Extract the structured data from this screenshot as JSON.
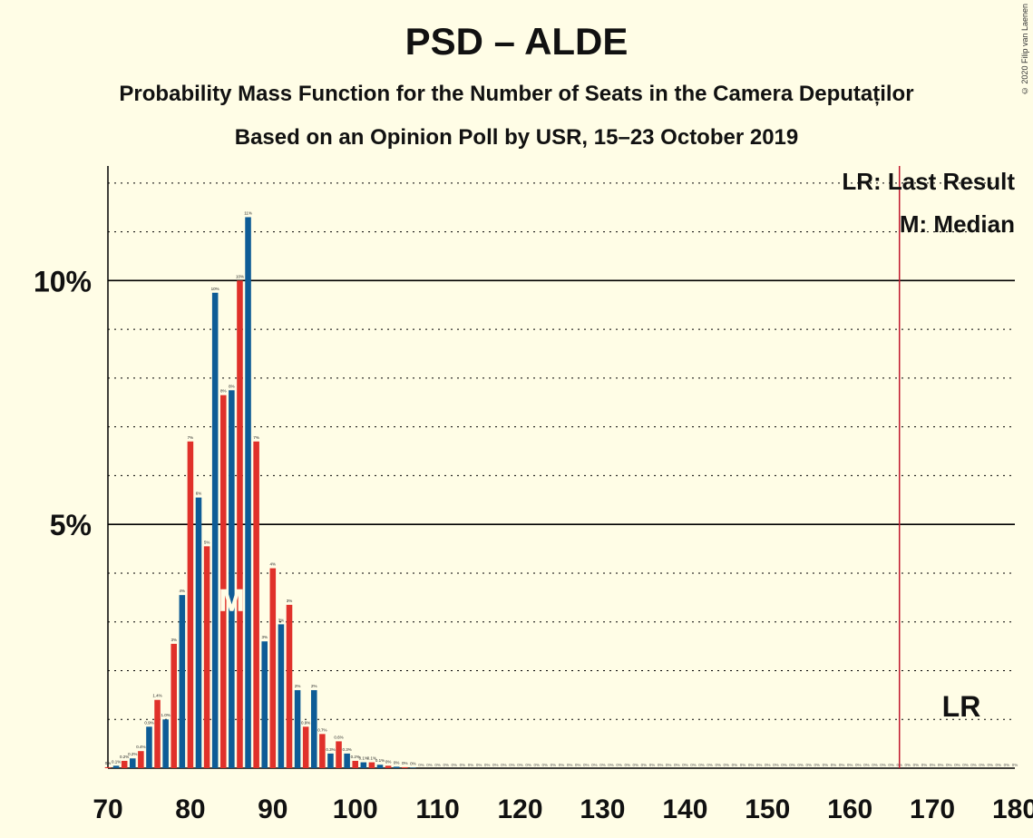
{
  "title": "PSD – ALDE",
  "subtitle": "Probability Mass Function for the Number of Seats in the Camera Deputaților",
  "subtitle2": "Based on an Opinion Poll by USR, 15–23 October 2019",
  "copyright": "© 2020 Filip van Laenen",
  "legend": {
    "last_result": "LR: Last Result",
    "median": "M: Median"
  },
  "colors": {
    "blue": "#0E5C96",
    "red": "#E0312A",
    "last_result_line": "#C0172D",
    "background": "#FFFDE6"
  },
  "chart_data": {
    "type": "bar",
    "title": "PSD – ALDE",
    "xlabel": "",
    "ylabel": "",
    "xlim": [
      70,
      180
    ],
    "ylim": [
      0,
      12.35
    ],
    "x_ticks": [
      "70",
      "80",
      "90",
      "100",
      "110",
      "120",
      "130",
      "140",
      "150",
      "160",
      "170",
      "180"
    ],
    "y_ticks": [
      {
        "value": 5,
        "label": "5%"
      },
      {
        "value": 10,
        "label": "10%"
      }
    ],
    "median": 85,
    "median_label": "M",
    "last_result": 166,
    "last_result_label": "LR",
    "seats": [
      70,
      71,
      72,
      73,
      74,
      75,
      76,
      77,
      78,
      79,
      80,
      81,
      82,
      83,
      84,
      85,
      86,
      87,
      88,
      89,
      90,
      91,
      92,
      93,
      94,
      95,
      96,
      97,
      98,
      99,
      100,
      101,
      102,
      103,
      104,
      105,
      106,
      107
    ],
    "values": [
      0.02,
      0.05,
      0.15,
      0.2,
      0.35,
      0.85,
      1.4,
      1.0,
      2.55,
      3.55,
      6.7,
      5.55,
      4.55,
      9.75,
      7.65,
      7.75,
      10.0,
      11.3,
      6.7,
      2.6,
      4.1,
      2.95,
      3.35,
      1.6,
      0.85,
      1.6,
      0.7,
      0.3,
      0.55,
      0.3,
      0.15,
      0.12,
      0.12,
      0.07,
      0.05,
      0.03,
      0.02,
      0.01
    ],
    "labels": [
      "0%",
      "0.1%",
      "0.2%",
      "0.2%",
      "0.4%",
      "0.9%",
      "1.4%",
      "1.0%",
      "3%",
      "4%",
      "7%",
      "6%",
      "5%",
      "10%",
      "8%",
      "8%",
      "10%",
      "11%",
      "7%",
      "3%",
      "4%",
      "3%",
      "3%",
      "2%",
      "0.9%",
      "2%",
      "0.7%",
      "0.3%",
      "0.6%",
      "0.3%",
      "0.2%",
      "0.1%",
      "0.1%",
      "0.1%",
      "0%",
      "0%",
      "0%",
      "0%"
    ]
  }
}
